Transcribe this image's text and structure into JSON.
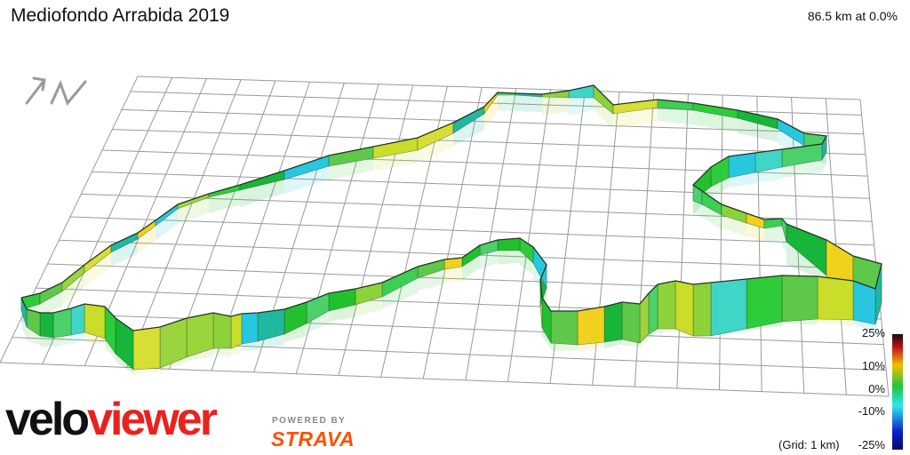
{
  "title": "Mediofondo Arrabida 2019",
  "stats": "86.5 km at 0.0%",
  "compass_icon": "north-arrow-icon",
  "gradient_scale": {
    "labels": [
      "25%",
      "10%",
      "0%",
      "-10%",
      "-25%"
    ],
    "colors": [
      "#1a0a0a",
      "#c8141a",
      "#f2c200",
      "#1fc43a",
      "#2ee6f0",
      "#0a1ec8",
      "#050a6a"
    ]
  },
  "grid_note": "(Grid: 1 km)",
  "brand": {
    "prefix": "velo",
    "suffix": "viewer",
    "accent_color": "#e8231f"
  },
  "powered_by": "POWERED BY",
  "strava": {
    "text": "STRAVA",
    "color": "#fc5200"
  }
}
